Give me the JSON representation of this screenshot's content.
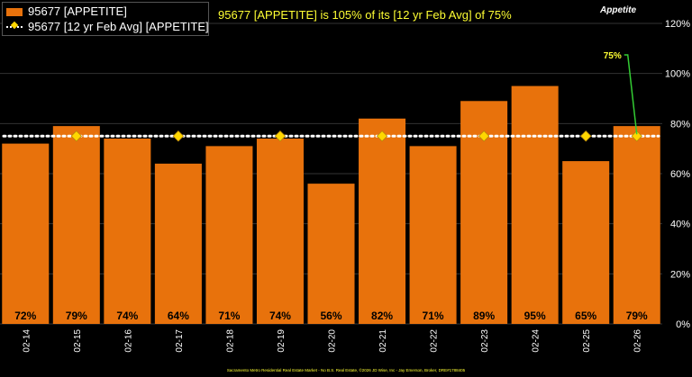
{
  "legend": {
    "bar_series": "95677 [APPETITE]",
    "avg_series": "95677 [12 yr Feb Avg] [APPETITE]"
  },
  "headline": "95677 [APPETITE] is 105% of its [12 yr Feb Avg] of 75%",
  "corner_title": "Appetite",
  "footer": "Sacramento Metro Residential Real Estate Market - No B.S. Real Estate, ©2026 JD Wise, Inc - Jay Emerson, Broker, DRE#1788405",
  "colors": {
    "bar": "#e8720c",
    "avg_marker": "#ffd700",
    "callout": "#33cc33",
    "headline": "#ffff33"
  },
  "chart_data": {
    "type": "bar",
    "categories": [
      "02-14",
      "02-15",
      "02-16",
      "02-17",
      "02-18",
      "02-19",
      "02-20",
      "02-21",
      "02-22",
      "02-23",
      "02-24",
      "02-25",
      "02-26"
    ],
    "series": [
      {
        "name": "95677 [APPETITE]",
        "values": [
          72,
          79,
          74,
          64,
          71,
          74,
          56,
          82,
          71,
          89,
          95,
          65,
          79
        ]
      },
      {
        "name": "95677 [12 yr Feb Avg] [APPETITE]",
        "values": [
          75,
          75,
          75,
          75,
          75,
          75,
          75,
          75,
          75,
          75,
          75,
          75,
          75
        ]
      }
    ],
    "data_labels": [
      "72%",
      "79%",
      "74%",
      "64%",
      "71%",
      "74%",
      "56%",
      "82%",
      "71%",
      "89%",
      "95%",
      "65%",
      "79%"
    ],
    "callout": {
      "category": "02-26",
      "text": "75%"
    },
    "y_ticks": [
      "0%",
      "20%",
      "40%",
      "60%",
      "80%",
      "100%",
      "120%"
    ],
    "y_tick_values": [
      0,
      20,
      40,
      60,
      80,
      100,
      120
    ],
    "ylim": [
      0,
      120
    ],
    "y_axis_side": "right",
    "grid": "horizontal"
  }
}
